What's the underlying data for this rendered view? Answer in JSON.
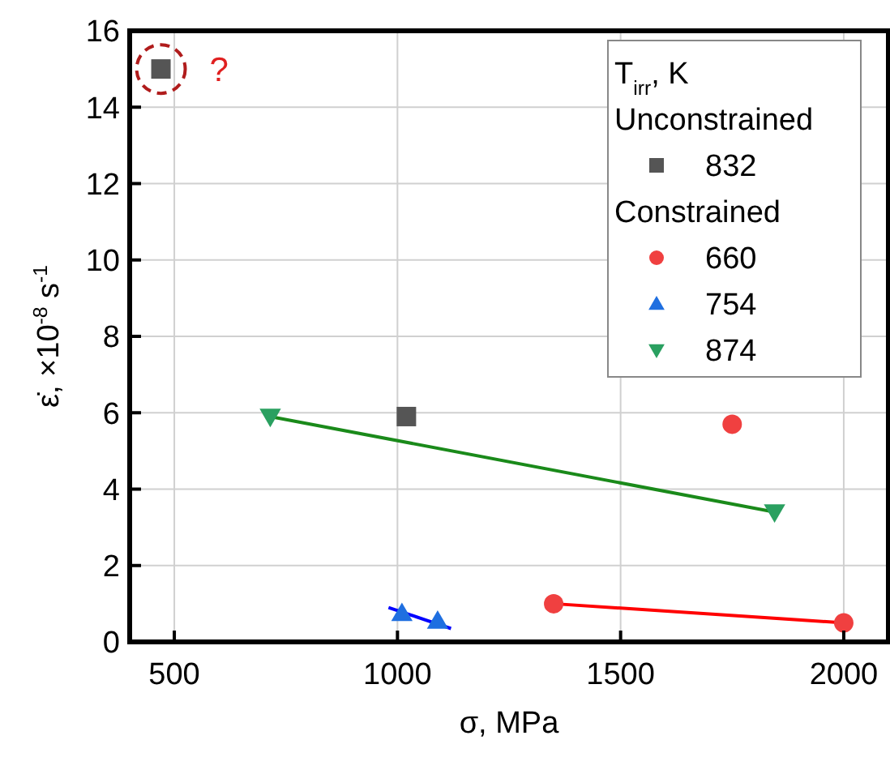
{
  "chart_data": {
    "type": "scatter",
    "xlabel": "σ, MPa",
    "ylabel": "ε̇, ×10$^{-8}$ s$^{-1}$",
    "legend_title": "T$_{irr}$, K",
    "xlim": [
      400,
      2100
    ],
    "xticks": [
      500,
      1000,
      1500,
      2000
    ],
    "ylim": [
      0,
      16
    ],
    "yticks": [
      0,
      2,
      4,
      6,
      8,
      10,
      12,
      14,
      16
    ],
    "grid": true,
    "legend": "top right",
    "series": [
      {
        "name": "832",
        "marker": "square",
        "color": "#555555",
        "x": [
          470,
          1020
        ],
        "values": [
          15,
          5.9
        ]
      },
      {
        "name": "660",
        "marker": "circle",
        "color": "#f04040",
        "x": [
          1350,
          1750,
          2000
        ],
        "values": [
          1.0,
          5.7,
          0.5
        ]
      },
      {
        "name": "754",
        "marker": "triangle",
        "color": "#1f6fe0",
        "x": [
          1010,
          1090
        ],
        "values": [
          0.75,
          0.55
        ]
      },
      {
        "name": "874",
        "marker": "triangle-down",
        "color": "#2aa060",
        "x": [
          715,
          1845
        ],
        "values": [
          5.9,
          3.4
        ]
      },
      {
        "type": "line",
        "marker": "none",
        "color": "#ff0000",
        "x": [
          1350,
          2000
        ],
        "values": [
          1.0,
          0.5
        ]
      },
      {
        "type": "line",
        "marker": "none",
        "color": "#0000ff",
        "x": [
          980,
          1120
        ],
        "values": [
          0.9,
          0.35
        ]
      },
      {
        "type": "line",
        "marker": "none",
        "color": "#1a8a1a",
        "x": [
          715,
          1845
        ],
        "values": [
          5.9,
          3.4
        ]
      }
    ],
    "annotations": [
      "Unconstrained",
      "Constrained",
      {
        "text": "?",
        "x": 470,
        "y": 15
      }
    ]
  }
}
